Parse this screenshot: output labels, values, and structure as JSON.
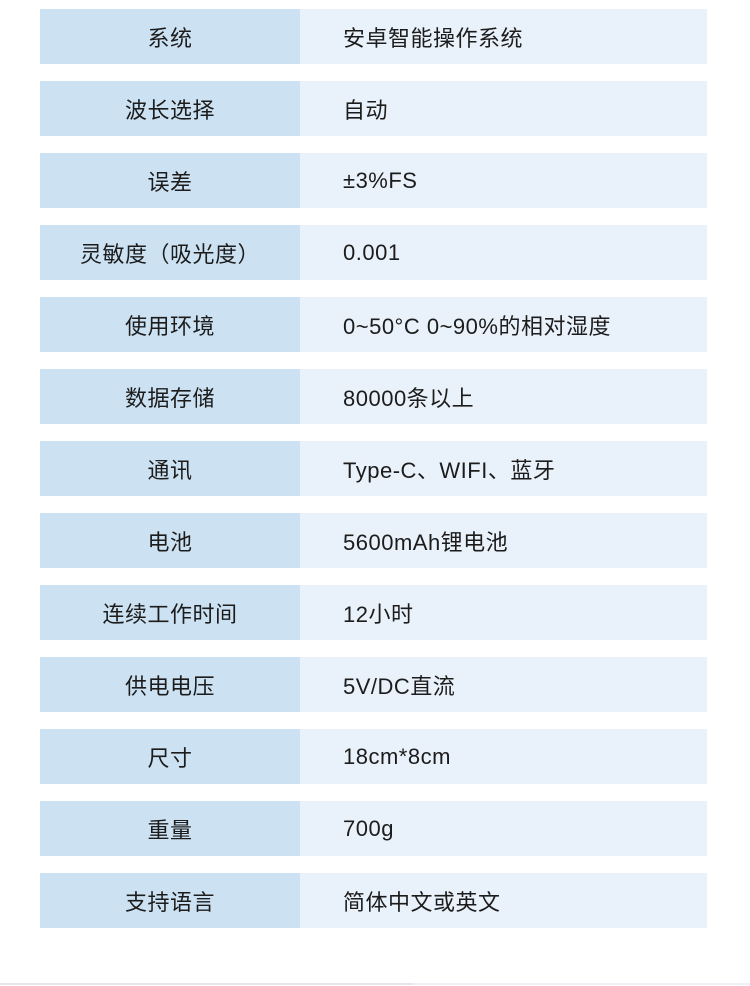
{
  "table": {
    "rows": [
      {
        "label": "系统",
        "value": "安卓智能操作系统"
      },
      {
        "label": "波长选择",
        "value": "自动"
      },
      {
        "label": "误差",
        "value": "±3%FS"
      },
      {
        "label": "灵敏度（吸光度）",
        "value": "0.001"
      },
      {
        "label": "使用环境",
        "value": "0~50°C 0~90%的相对湿度"
      },
      {
        "label": "数据存储",
        "value": "80000条以上"
      },
      {
        "label": "通讯",
        "value": "Type-C、WIFI、蓝牙"
      },
      {
        "label": "电池",
        "value": "5600mAh锂电池"
      },
      {
        "label": "连续工作时间",
        "value": "12小时"
      },
      {
        "label": "供电电压",
        "value": "5V/DC直流"
      },
      {
        "label": "尺寸",
        "value": "18cm*8cm"
      },
      {
        "label": "重量",
        "value": "700g"
      },
      {
        "label": "支持语言",
        "value": "简体中文或英文"
      }
    ]
  },
  "colors": {
    "label_bg": "#cce2f3",
    "value_bg": "#e9f1fa",
    "text": "#1c1c1c",
    "divider": "#e4e6ed"
  }
}
